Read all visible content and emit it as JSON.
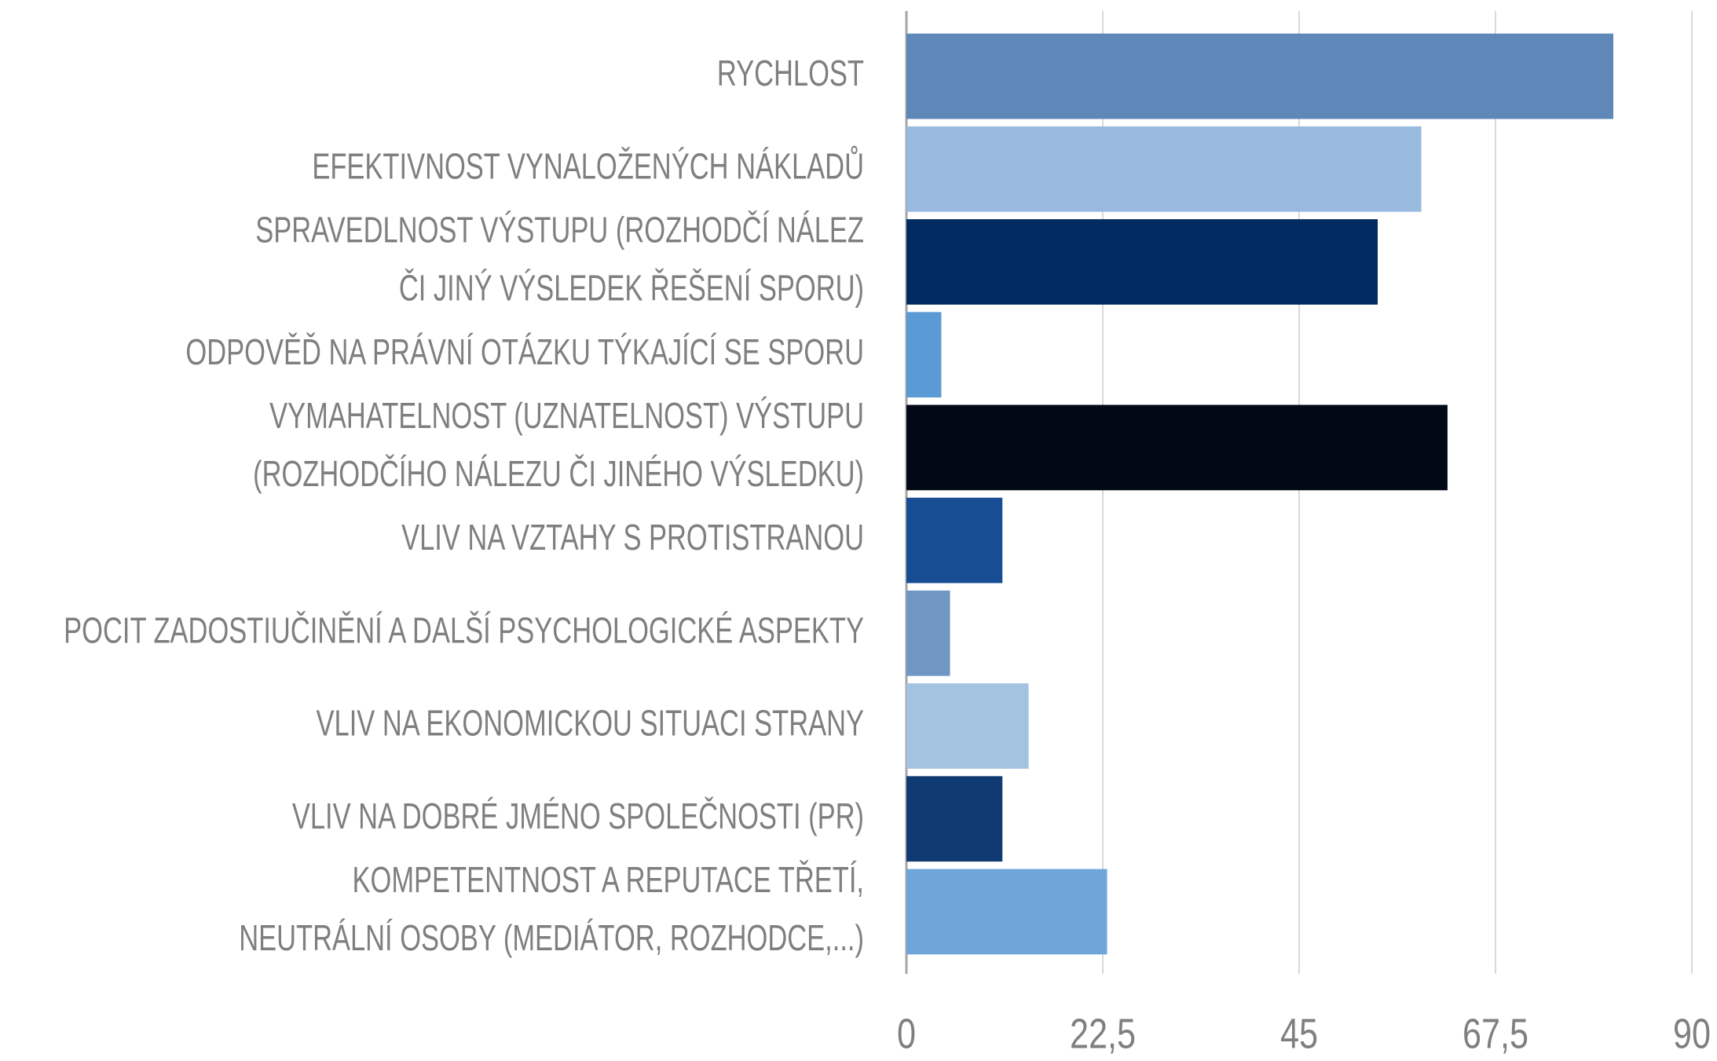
{
  "chart_data": {
    "type": "barh",
    "categories": [
      [
        "RYCHLOST"
      ],
      [
        "EFEKTIVNOST VYNALOŽENÝCH NÁKLADŮ"
      ],
      [
        "SPRAVEDLNOST VÝSTUPU (ROZHODČÍ NÁLEZ",
        "ČI JINÝ VÝSLEDEK ŘEŠENÍ SPORU)"
      ],
      [
        "ODPOVĚĎ NA PRÁVNÍ OTÁZKU TÝKAJÍCÍ SE SPORU"
      ],
      [
        "VYMAHATELNOST (UZNATELNOST) VÝSTUPU",
        "(ROZHODČÍHO NÁLEZU ČI JINÉHO VÝSLEDKU)"
      ],
      [
        "VLIV NA VZTAHY S PROTISTRANOU"
      ],
      [
        "POCIT ZADOSTIUČINĚNÍ A DALŠÍ PSYCHOLOGICKÉ ASPEKTY"
      ],
      [
        "VLIV NA EKONOMICKOU SITUACI STRANY"
      ],
      [
        "VLIV NA DOBRÉ JMÉNO SPOLEČNOSTI (PR)"
      ],
      [
        "KOMPETENTNOST A REPUTACE TŘETÍ,",
        "NEUTRÁLNÍ OSOBY (MEDIÁTOR, ROZHODCE,...)"
      ]
    ],
    "values": [
      81,
      59,
      54,
      4,
      62,
      11,
      5,
      14,
      11,
      23
    ],
    "colors": [
      "#5f87b8",
      "#98bade",
      "#002b60",
      "#5b9bd5",
      "#010a14",
      "#174d93",
      "#7097c4",
      "#a4c3e1",
      "#103a72",
      "#6ea6d9"
    ],
    "xlim": [
      0,
      90
    ],
    "xticks": [
      0,
      {
        "value": 22.5,
        "label": "22,5"
      },
      45,
      {
        "value": 67.5,
        "label": "67,5"
      },
      90
    ],
    "grid": true
  }
}
